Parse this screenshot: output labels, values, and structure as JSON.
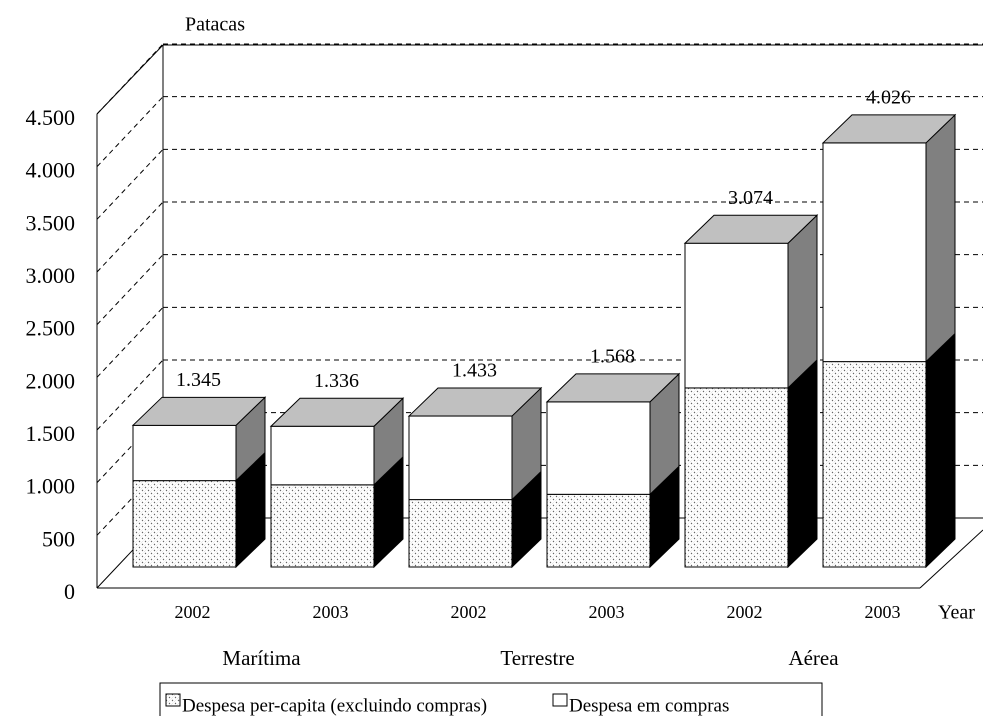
{
  "chart_data": {
    "type": "bar3d_stacked",
    "y_label": "Patacas",
    "x_label": "Year",
    "categories": [
      "2002",
      "2003",
      "2002",
      "2003",
      "2002",
      "2003"
    ],
    "groups": [
      "Marítima",
      "Terrestre",
      "Aérea"
    ],
    "series": [
      {
        "name": "Despesa per-capita (excluindo compras)",
        "color": "#ffffff",
        "pattern": "dots",
        "values": [
          820,
          780,
          640,
          690,
          1700,
          1950
        ]
      },
      {
        "name": "Despesa em compras",
        "color": "#ffffff",
        "values": [
          525,
          556,
          793,
          878,
          1374,
          2076
        ]
      }
    ],
    "totals": [
      1345,
      1336,
      1433,
      1568,
      3074,
      4026
    ],
    "value_labels": [
      "1.345",
      "1.336",
      "1.433",
      "1.568",
      "3.074",
      "4.026"
    ],
    "ylim": [
      0,
      4500
    ],
    "yticks": [
      0,
      500,
      {
        "value": 1000,
        "label": "1.000"
      },
      {
        "value": 1500,
        "label": "1.500"
      },
      {
        "value": 2000,
        "label": "2.000"
      },
      {
        "value": 2500,
        "label": "2.500"
      },
      {
        "value": 3000,
        "label": "3.000"
      },
      {
        "value": 3500,
        "label": "3.500"
      },
      {
        "value": 4000,
        "label": "4.000"
      },
      {
        "value": 4500,
        "label": "4.500"
      }
    ],
    "grid": true
  }
}
